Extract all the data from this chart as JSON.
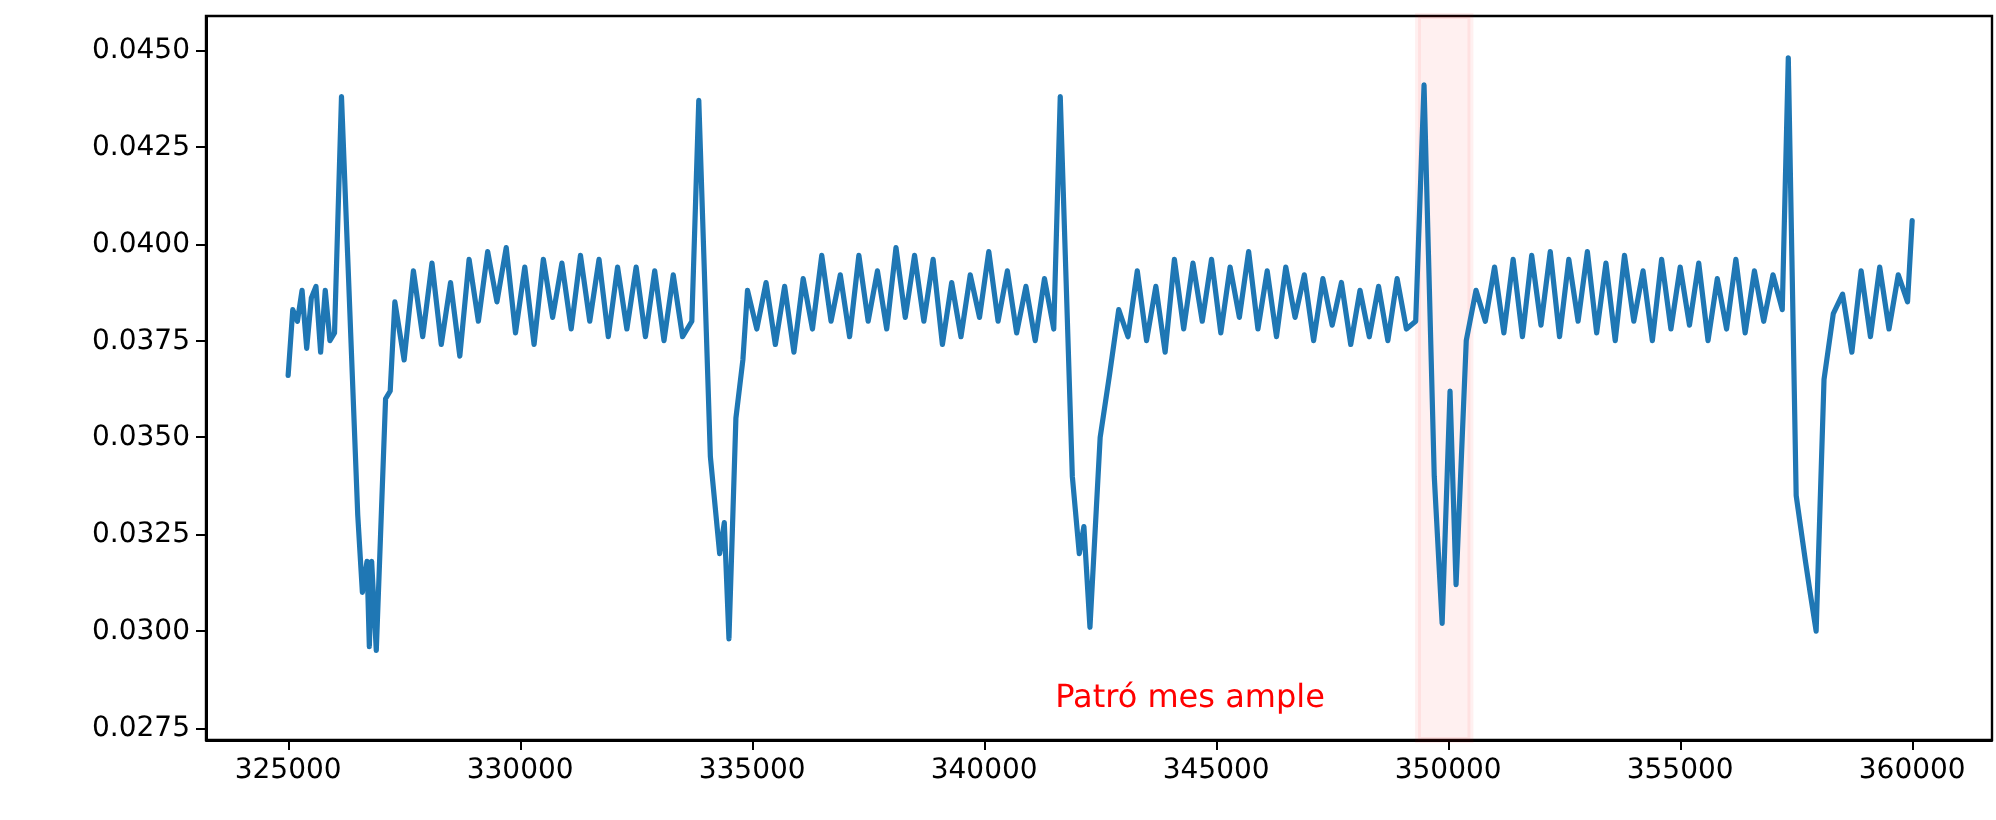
{
  "chart_data": {
    "type": "line",
    "line_style": "solid",
    "marker": "none",
    "grid": false,
    "xlim": [
      323230,
      361720
    ],
    "ylim": [
      0.02719,
      0.04588
    ],
    "xticks": [
      325000,
      330000,
      335000,
      340000,
      345000,
      350000,
      355000,
      360000
    ],
    "yticks": [
      {
        "value": 0.0275,
        "label": "0.0275"
      },
      {
        "value": 0.03,
        "label": "0.0300"
      },
      {
        "value": 0.0325,
        "label": "0.0325"
      },
      {
        "value": 0.035,
        "label": "0.0350"
      },
      {
        "value": 0.0375,
        "label": "0.0375"
      },
      {
        "value": 0.04,
        "label": "0.0400"
      },
      {
        "value": 0.0425,
        "label": "0.0425"
      },
      {
        "value": 0.045,
        "label": "0.0450"
      }
    ],
    "bands": [
      {
        "axis": "x",
        "from": 349350,
        "to": 350480,
        "color": "#ff0000"
      }
    ],
    "annotations": [
      "Patró mes ample"
    ],
    "series": [
      {
        "color": "#1f77b4",
        "x": [
          325000,
          325100,
          325200,
          325300,
          325400,
          325500,
          325600,
          325700,
          325800,
          325900,
          326000,
          326150,
          326500,
          326600,
          326700,
          326750,
          326800,
          326900,
          327100,
          327200,
          327300,
          327500,
          327700,
          327900,
          328100,
          328300,
          328500,
          328700,
          328900,
          329100,
          329300,
          329500,
          329700,
          329900,
          330100,
          330300,
          330500,
          330700,
          330900,
          331100,
          331300,
          331500,
          331700,
          331900,
          332100,
          332300,
          332500,
          332700,
          332900,
          333100,
          333300,
          333500,
          333700,
          333850,
          334100,
          334300,
          334400,
          334500,
          334650,
          334800,
          334900,
          335100,
          335300,
          335500,
          335700,
          335900,
          336100,
          336300,
          336500,
          336700,
          336900,
          337100,
          337300,
          337500,
          337700,
          337900,
          338100,
          338300,
          338500,
          338700,
          338900,
          339100,
          339300,
          339500,
          339700,
          339900,
          340100,
          340300,
          340500,
          340700,
          340900,
          341100,
          341300,
          341500,
          341640,
          341900,
          342050,
          342150,
          342280,
          342500,
          342700,
          342900,
          343100,
          343300,
          343500,
          343700,
          343900,
          344100,
          344300,
          344500,
          344700,
          344900,
          345100,
          345300,
          345500,
          345700,
          345900,
          346100,
          346300,
          346500,
          346700,
          346900,
          347100,
          347300,
          347500,
          347700,
          347900,
          348100,
          348300,
          348500,
          348700,
          348900,
          349100,
          349300,
          349480,
          349700,
          349870,
          350040,
          350170,
          350390,
          350600,
          350800,
          351000,
          351200,
          351400,
          351600,
          351800,
          352000,
          352200,
          352400,
          352600,
          352800,
          353000,
          353200,
          353400,
          353600,
          353800,
          354000,
          354200,
          354400,
          354600,
          354800,
          355000,
          355200,
          355400,
          355600,
          355800,
          356000,
          356200,
          356400,
          356600,
          356800,
          357000,
          357200,
          357330,
          357500,
          357700,
          357800,
          357930,
          358100,
          358300,
          358500,
          358700,
          358900,
          359100,
          359300,
          359500,
          359700,
          359900,
          360000
        ],
        "values": [
          0.0366,
          0.0383,
          0.038,
          0.0388,
          0.0373,
          0.0386,
          0.0389,
          0.0372,
          0.0388,
          0.0375,
          0.0377,
          0.0438,
          0.033,
          0.031,
          0.0318,
          0.0296,
          0.0318,
          0.0295,
          0.036,
          0.0362,
          0.0385,
          0.037,
          0.0393,
          0.0376,
          0.0395,
          0.0374,
          0.039,
          0.0371,
          0.0396,
          0.038,
          0.0398,
          0.0385,
          0.0399,
          0.0377,
          0.0394,
          0.0374,
          0.0396,
          0.0381,
          0.0395,
          0.0378,
          0.0397,
          0.038,
          0.0396,
          0.0376,
          0.0394,
          0.0378,
          0.0394,
          0.0376,
          0.0393,
          0.0375,
          0.0392,
          0.0376,
          0.038,
          0.0437,
          0.0345,
          0.032,
          0.0328,
          0.0298,
          0.0355,
          0.037,
          0.0388,
          0.0378,
          0.039,
          0.0374,
          0.0389,
          0.0372,
          0.0391,
          0.0378,
          0.0397,
          0.038,
          0.0392,
          0.0376,
          0.0397,
          0.038,
          0.0393,
          0.0378,
          0.0399,
          0.0381,
          0.0397,
          0.038,
          0.0396,
          0.0374,
          0.039,
          0.0376,
          0.0392,
          0.0381,
          0.0398,
          0.038,
          0.0393,
          0.0377,
          0.0389,
          0.0375,
          0.0391,
          0.0378,
          0.0438,
          0.034,
          0.032,
          0.0327,
          0.0301,
          0.035,
          0.0366,
          0.0383,
          0.0376,
          0.0393,
          0.0375,
          0.0389,
          0.0372,
          0.0396,
          0.0378,
          0.0395,
          0.038,
          0.0396,
          0.0377,
          0.0394,
          0.0381,
          0.0398,
          0.0378,
          0.0393,
          0.0376,
          0.0394,
          0.0381,
          0.0392,
          0.0375,
          0.0391,
          0.0379,
          0.039,
          0.0374,
          0.0388,
          0.0376,
          0.0389,
          0.0375,
          0.0391,
          0.0378,
          0.038,
          0.0441,
          0.034,
          0.0302,
          0.0362,
          0.0312,
          0.0375,
          0.0388,
          0.038,
          0.0394,
          0.0377,
          0.0396,
          0.0376,
          0.0397,
          0.0379,
          0.0398,
          0.0376,
          0.0396,
          0.038,
          0.0398,
          0.0377,
          0.0395,
          0.0375,
          0.0397,
          0.038,
          0.0393,
          0.0375,
          0.0396,
          0.0378,
          0.0394,
          0.0379,
          0.0395,
          0.0375,
          0.0391,
          0.0378,
          0.0396,
          0.0377,
          0.0393,
          0.038,
          0.0392,
          0.0383,
          0.0448,
          0.0335,
          0.0318,
          0.031,
          0.03,
          0.0365,
          0.0382,
          0.0387,
          0.0372,
          0.0393,
          0.0376,
          0.0394,
          0.0378,
          0.0392,
          0.0385,
          0.0406
        ]
      }
    ]
  }
}
